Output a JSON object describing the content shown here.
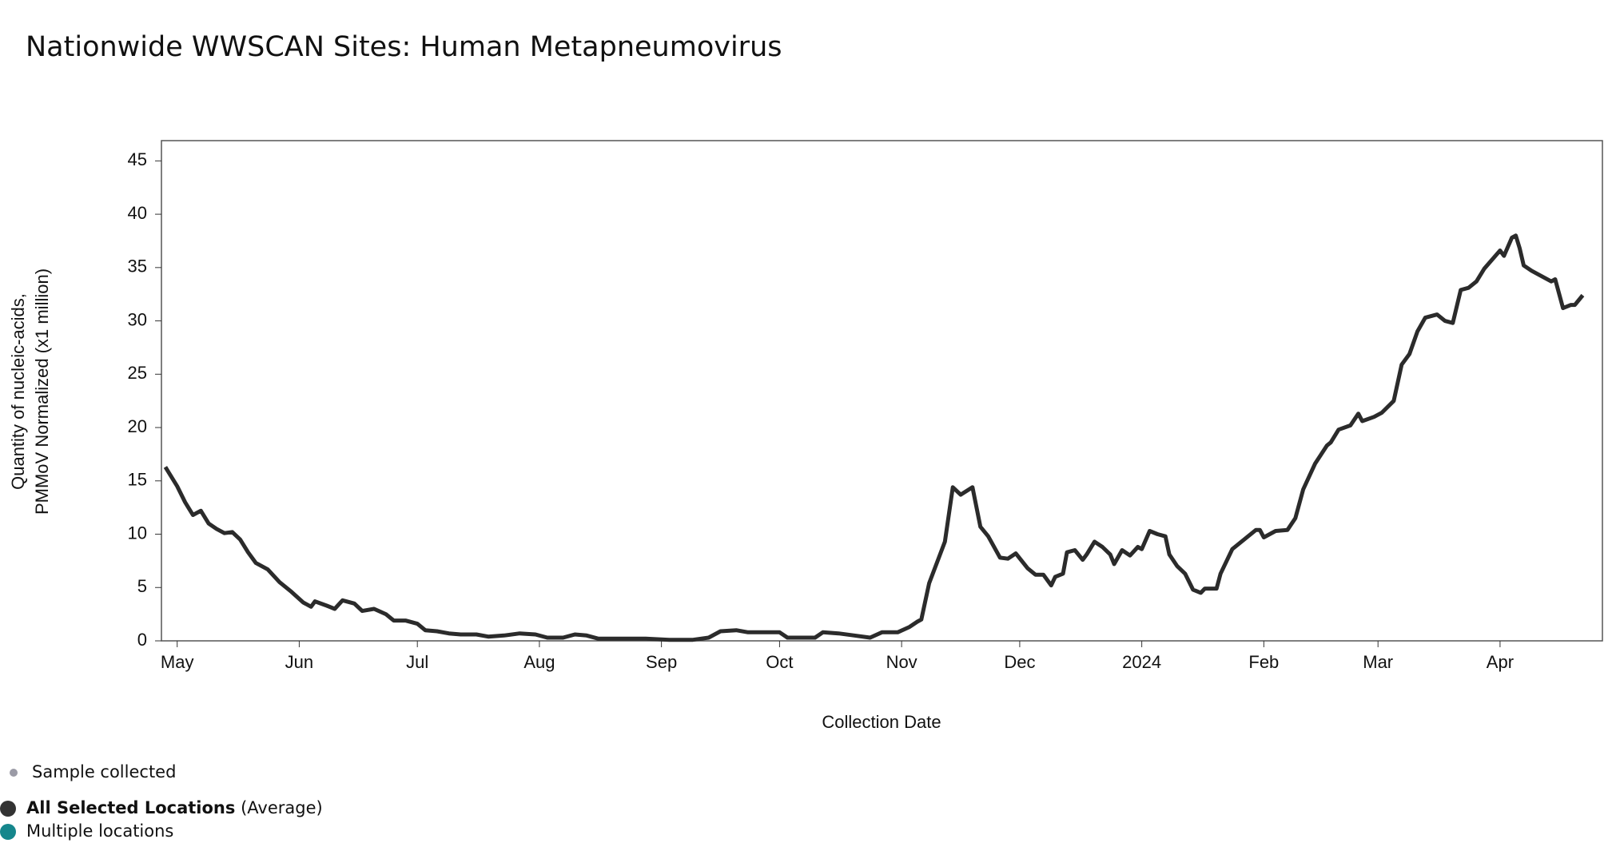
{
  "chart_data": {
    "type": "line",
    "title": "Nationwide WWSCAN Sites: Human Metapneumovirus",
    "xlabel": "Collection Date",
    "ylabel": [
      "Quantity of nucleic-acids,",
      "PMMoV Normalized (x1 million)"
    ],
    "xlim": [
      "2023-04-27",
      "2024-04-27"
    ],
    "xticks": [
      {
        "value": "2023-05-01",
        "label": "May"
      },
      {
        "value": "2023-06-01",
        "label": "Jun"
      },
      {
        "value": "2023-07-01",
        "label": "Jul"
      },
      {
        "value": "2023-08-01",
        "label": "Aug"
      },
      {
        "value": "2023-09-01",
        "label": "Sep"
      },
      {
        "value": "2023-10-01",
        "label": "Oct"
      },
      {
        "value": "2023-11-01",
        "label": "Nov"
      },
      {
        "value": "2023-12-01",
        "label": "Dec"
      },
      {
        "value": "2024-01-01",
        "label": "2024"
      },
      {
        "value": "2024-02-01",
        "label": "Feb"
      },
      {
        "value": "2024-03-01",
        "label": "Mar"
      },
      {
        "value": "2024-04-01",
        "label": "Apr"
      }
    ],
    "ylim": [
      0,
      46.9
    ],
    "yticks": [
      0,
      5,
      10,
      15,
      20,
      25,
      30,
      35,
      40,
      45
    ],
    "x": [
      "2023-04-28",
      "2023-05-01",
      "2023-05-03",
      "2023-05-05",
      "2023-05-07",
      "2023-05-09",
      "2023-05-11",
      "2023-05-13",
      "2023-05-15",
      "2023-05-17",
      "2023-05-19",
      "2023-05-21",
      "2023-05-24",
      "2023-05-27",
      "2023-05-30",
      "2023-06-02",
      "2023-06-04",
      "2023-06-05",
      "2023-06-08",
      "2023-06-10",
      "2023-06-12",
      "2023-06-15",
      "2023-06-17",
      "2023-06-20",
      "2023-06-23",
      "2023-06-25",
      "2023-06-28",
      "2023-07-01",
      "2023-07-03",
      "2023-07-06",
      "2023-07-09",
      "2023-07-12",
      "2023-07-16",
      "2023-07-19",
      "2023-07-23",
      "2023-07-27",
      "2023-07-31",
      "2023-08-03",
      "2023-08-07",
      "2023-08-10",
      "2023-08-13",
      "2023-08-16",
      "2023-08-22",
      "2023-08-28",
      "2023-09-03",
      "2023-09-09",
      "2023-09-13",
      "2023-09-16",
      "2023-09-20",
      "2023-09-23",
      "2023-09-27",
      "2023-10-01",
      "2023-10-03",
      "2023-10-07",
      "2023-10-10",
      "2023-10-12",
      "2023-10-16",
      "2023-10-20",
      "2023-10-24",
      "2023-10-27",
      "2023-10-31",
      "2023-11-03",
      "2023-11-05",
      "2023-11-06",
      "2023-11-08",
      "2023-11-12",
      "2023-11-14",
      "2023-11-16",
      "2023-11-19",
      "2023-11-21",
      "2023-11-23",
      "2023-11-26",
      "2023-11-28",
      "2023-11-30",
      "2023-12-03",
      "2023-12-05",
      "2023-12-07",
      "2023-12-09",
      "2023-12-10",
      "2023-12-12",
      "2023-12-13",
      "2023-12-15",
      "2023-12-17",
      "2023-12-18",
      "2023-12-20",
      "2023-12-22",
      "2023-12-24",
      "2023-12-25",
      "2023-12-27",
      "2023-12-29",
      "2023-12-31",
      "2024-01-01",
      "2024-01-03",
      "2024-01-05",
      "2024-01-07",
      "2024-01-08",
      "2024-01-10",
      "2024-01-12",
      "2024-01-14",
      "2024-01-16",
      "2024-01-17",
      "2024-01-20",
      "2024-01-21",
      "2024-01-24",
      "2024-01-27",
      "2024-01-30",
      "2024-01-31",
      "2024-02-01",
      "2024-02-04",
      "2024-02-07",
      "2024-02-09",
      "2024-02-11",
      "2024-02-14",
      "2024-02-17",
      "2024-02-18",
      "2024-02-20",
      "2024-02-23",
      "2024-02-25",
      "2024-02-26",
      "2024-02-29",
      "2024-03-02",
      "2024-03-05",
      "2024-03-07",
      "2024-03-09",
      "2024-03-11",
      "2024-03-13",
      "2024-03-16",
      "2024-03-18",
      "2024-03-20",
      "2024-03-22",
      "2024-03-24",
      "2024-03-26",
      "2024-03-28",
      "2024-04-01",
      "2024-04-02",
      "2024-04-04",
      "2024-04-05",
      "2024-04-06",
      "2024-04-07",
      "2024-04-09",
      "2024-04-11",
      "2024-04-14",
      "2024-04-15",
      "2024-04-17",
      "2024-04-19",
      "2024-04-20",
      "2024-04-22"
    ],
    "series": [
      {
        "name": "All Selected Locations",
        "color": "#2b2b2b",
        "values": [
          16.3,
          14.5,
          13,
          11.8,
          12.2,
          11,
          10.5,
          10.1,
          10.2,
          9.5,
          8.3,
          7.3,
          6.7,
          5.5,
          4.6,
          3.6,
          3.2,
          3.7,
          3.3,
          3.0,
          3.8,
          3.5,
          2.8,
          3.0,
          2.5,
          1.9,
          1.9,
          1.6,
          1.0,
          0.9,
          0.7,
          0.6,
          0.6,
          0.4,
          0.5,
          0.7,
          0.6,
          0.3,
          0.3,
          0.6,
          0.5,
          0.2,
          0.2,
          0.2,
          0.1,
          0.1,
          0.3,
          0.9,
          1.0,
          0.8,
          0.8,
          0.8,
          0.3,
          0.3,
          0.3,
          0.8,
          0.7,
          0.5,
          0.3,
          0.8,
          0.8,
          1.3,
          1.8,
          2.0,
          5.4,
          9.3,
          14.4,
          13.7,
          14.4,
          10.7,
          9.8,
          7.8,
          7.7,
          8.2,
          6.8,
          6.2,
          6.2,
          5.2,
          6.0,
          6.3,
          8.3,
          8.5,
          7.6,
          8.1,
          9.3,
          8.8,
          8.1,
          7.2,
          8.5,
          8.0,
          8.8,
          8.6,
          10.3,
          10.0,
          9.8,
          8.1,
          7.0,
          6.3,
          4.8,
          4.5,
          4.9,
          4.9,
          6.3,
          8.6,
          9.5,
          10.4,
          10.4,
          9.7,
          10.3,
          10.4,
          11.5,
          14.2,
          16.6,
          18.3,
          18.6,
          19.8,
          20.2,
          21.3,
          20.6,
          21.0,
          21.4,
          22.5,
          25.9,
          26.9,
          29.0,
          30.3,
          30.6,
          30.0,
          29.8,
          32.9,
          33.1,
          33.7,
          34.9,
          36.6,
          36.1,
          37.8,
          38.0,
          36.8,
          35.2,
          34.7,
          34.3,
          33.7,
          33.9,
          31.2,
          31.5,
          31.5,
          32.4
        ]
      }
    ],
    "legend": [
      {
        "label": "Sample collected",
        "color": "#9b9ba6"
      },
      {
        "label": "All Selected Locations",
        "note": "(Average)",
        "color": "#333333"
      },
      {
        "label": "Multiple locations",
        "color": "#15868c"
      }
    ]
  }
}
